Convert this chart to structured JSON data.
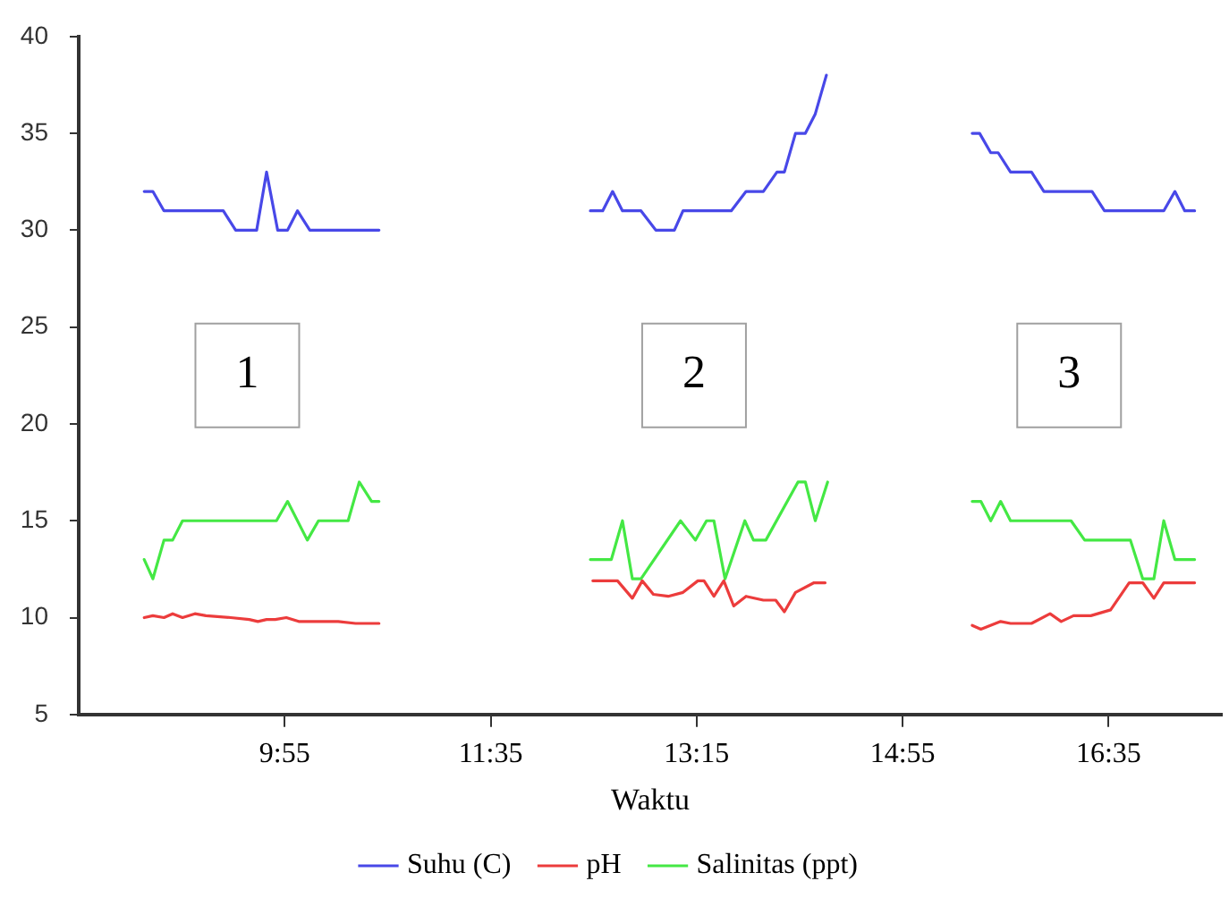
{
  "chart_data": {
    "type": "line",
    "xlabel": "Waktu",
    "xlim": [
      8.25,
      17.5
    ],
    "xticks": [
      {
        "value": 9.9167,
        "label": "9:55"
      },
      {
        "value": 11.5833,
        "label": "11:35"
      },
      {
        "value": 13.25,
        "label": "13:15"
      },
      {
        "value": 14.9167,
        "label": "14:55"
      },
      {
        "value": 16.5833,
        "label": "16:35"
      }
    ],
    "ylim": [
      5,
      40
    ],
    "yticks": [
      5,
      10,
      15,
      20,
      25,
      30,
      35,
      40
    ],
    "grid": false,
    "legend": "bottom",
    "marker": "none",
    "line_style": "solid",
    "annotations": [
      "1",
      "2",
      "3"
    ],
    "series": [
      {
        "name": "Suhu (C)",
        "color": "#4848e8",
        "x": [
          8.78,
          8.85,
          8.94,
          9.42,
          9.52,
          9.69,
          9.77,
          9.86,
          9.94,
          10.02,
          10.12,
          10.68,
          11.5,
          12.39,
          12.49,
          12.57,
          12.65,
          12.8,
          12.92,
          13.07,
          13.14,
          13.53,
          13.65,
          13.79,
          13.9,
          13.96,
          14.05,
          14.13,
          14.21,
          14.3,
          14.9,
          15.48,
          15.54,
          15.63,
          15.69,
          15.79,
          15.96,
          16.06,
          16.45,
          16.55,
          17.03,
          17.12,
          17.2,
          17.28
        ],
        "values": [
          32,
          32,
          31,
          31,
          30,
          30,
          33,
          30,
          30,
          31,
          30,
          30,
          null,
          31,
          31,
          32,
          31,
          31,
          30,
          30,
          31,
          31,
          32,
          32,
          33,
          33,
          35,
          35,
          36,
          38,
          null,
          35,
          35,
          34,
          34,
          33,
          33,
          32,
          32,
          31,
          31,
          32,
          31,
          31
        ]
      },
      {
        "name": "pH",
        "color": "#ec3c3c",
        "x": [
          8.78,
          8.85,
          8.94,
          9.01,
          9.09,
          9.19,
          9.28,
          9.48,
          9.63,
          9.7,
          9.77,
          9.84,
          9.93,
          10.03,
          10.35,
          10.49,
          10.68,
          11.5,
          12.41,
          12.61,
          12.73,
          12.81,
          12.9,
          13.02,
          13.14,
          13.26,
          13.31,
          13.39,
          13.47,
          13.55,
          13.65,
          13.79,
          13.89,
          13.96,
          14.05,
          14.2,
          14.29,
          14.9,
          15.48,
          15.55,
          15.71,
          15.79,
          15.96,
          16.11,
          16.2,
          16.3,
          16.44,
          16.6,
          16.75,
          16.86,
          16.95,
          17.03,
          17.28
        ],
        "values": [
          10,
          10.1,
          10,
          10.2,
          10,
          10.2,
          10.1,
          10,
          9.9,
          9.8,
          9.9,
          9.9,
          10,
          9.8,
          9.8,
          9.7,
          9.7,
          null,
          11.9,
          11.9,
          11,
          11.9,
          11.2,
          11.1,
          11.3,
          11.9,
          11.9,
          11.1,
          11.9,
          10.6,
          11.1,
          10.9,
          10.9,
          10.3,
          11.3,
          11.8,
          11.8,
          null,
          9.6,
          9.4,
          9.8,
          9.7,
          9.7,
          10.2,
          9.8,
          10.1,
          10.1,
          10.4,
          11.8,
          11.8,
          11,
          11.8,
          11.8
        ]
      },
      {
        "name": "Salinitas (ppt)",
        "color": "#44e844",
        "x": [
          8.78,
          8.85,
          8.94,
          9.01,
          9.09,
          9.85,
          9.94,
          10.1,
          10.19,
          10.43,
          10.52,
          10.62,
          10.68,
          11.5,
          12.39,
          12.56,
          12.65,
          12.73,
          12.8,
          13.12,
          13.24,
          13.33,
          13.39,
          13.48,
          13.64,
          13.71,
          13.81,
          14.07,
          14.13,
          14.21,
          14.31,
          14.9,
          15.48,
          15.55,
          15.63,
          15.71,
          15.79,
          16.28,
          16.39,
          16.76,
          16.86,
          16.95,
          17.03,
          17.12,
          17.28
        ],
        "values": [
          13,
          12,
          14,
          14,
          15,
          15,
          16,
          14,
          15,
          15,
          17,
          16,
          16,
          null,
          13,
          13,
          15,
          12,
          12,
          15,
          14,
          15,
          15,
          12,
          15,
          14,
          14,
          17,
          17,
          15,
          17,
          null,
          16,
          16,
          15,
          16,
          15,
          15,
          14,
          14,
          12,
          12,
          15,
          13,
          13
        ]
      }
    ]
  }
}
